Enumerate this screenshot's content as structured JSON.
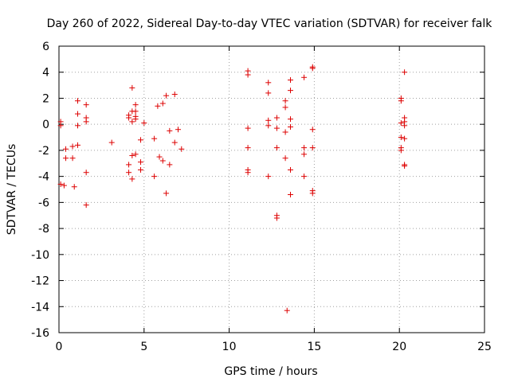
{
  "chart_data": {
    "type": "scatter",
    "title": "Day 260 of 2022, Sidereal Day-to-day VTEC variation (SDTVAR) for receiver falk",
    "xlabel": "GPS time / hours",
    "ylabel": "SDTVAR / TECUs",
    "xlim": [
      0,
      25
    ],
    "ylim": [
      -16,
      6
    ],
    "xticks": [
      0,
      5,
      10,
      15,
      20,
      25
    ],
    "yticks": [
      -16,
      -14,
      -12,
      -10,
      -8,
      -6,
      -4,
      -2,
      0,
      2,
      4,
      6
    ],
    "xtick_labels": [
      "0",
      "5",
      "10",
      "15",
      "20",
      "25"
    ],
    "ytick_labels": [
      "-16",
      "-14",
      "-12",
      "-10",
      "-8",
      "-6",
      "-4",
      "-2",
      "0",
      "2",
      "4",
      "6"
    ],
    "grid": true,
    "marker": "+",
    "marker_color": "#dd0000",
    "series": [
      {
        "name": "SDTVAR",
        "points": [
          [
            0.1,
            0.2
          ],
          [
            0.1,
            -0.1
          ],
          [
            0.1,
            -4.6
          ],
          [
            0.3,
            -4.7
          ],
          [
            0.4,
            -1.9
          ],
          [
            0.4,
            -2.6
          ],
          [
            0.8,
            -1.7
          ],
          [
            0.8,
            -2.6
          ],
          [
            0.9,
            -4.8
          ],
          [
            1.1,
            1.8
          ],
          [
            1.1,
            0.8
          ],
          [
            1.1,
            -0.1
          ],
          [
            1.1,
            -1.6
          ],
          [
            1.6,
            1.5
          ],
          [
            1.6,
            0.5
          ],
          [
            1.6,
            0.2
          ],
          [
            1.6,
            -3.7
          ],
          [
            1.6,
            -6.2
          ],
          [
            3.1,
            -1.4
          ],
          [
            4.1,
            0.7
          ],
          [
            4.1,
            0.5
          ],
          [
            4.1,
            -3.1
          ],
          [
            4.1,
            -3.7
          ],
          [
            4.3,
            2.8
          ],
          [
            4.3,
            1.0
          ],
          [
            4.3,
            0.2
          ],
          [
            4.3,
            -2.4
          ],
          [
            4.3,
            -4.2
          ],
          [
            4.5,
            1.5
          ],
          [
            4.5,
            1.0
          ],
          [
            4.5,
            0.6
          ],
          [
            4.5,
            0.4
          ],
          [
            4.5,
            -2.3
          ],
          [
            4.8,
            -1.2
          ],
          [
            4.8,
            -2.9
          ],
          [
            4.8,
            -3.5
          ],
          [
            5.0,
            0.1
          ],
          [
            5.6,
            -1.1
          ],
          [
            5.6,
            -4.0
          ],
          [
            5.8,
            1.4
          ],
          [
            5.9,
            -2.5
          ],
          [
            6.1,
            1.6
          ],
          [
            6.1,
            -2.8
          ],
          [
            6.3,
            2.2
          ],
          [
            6.3,
            -5.3
          ],
          [
            6.5,
            -0.5
          ],
          [
            6.5,
            -3.1
          ],
          [
            6.8,
            2.3
          ],
          [
            6.8,
            -1.4
          ],
          [
            7.0,
            -0.4
          ],
          [
            7.2,
            -1.9
          ],
          [
            11.1,
            4.1
          ],
          [
            11.1,
            3.8
          ],
          [
            11.1,
            -0.3
          ],
          [
            11.1,
            -1.8
          ],
          [
            11.1,
            -3.5
          ],
          [
            11.1,
            -3.7
          ],
          [
            12.3,
            3.2
          ],
          [
            12.3,
            2.4
          ],
          [
            12.3,
            0.3
          ],
          [
            12.3,
            -0.1
          ],
          [
            12.3,
            -4.0
          ],
          [
            12.8,
            0.5
          ],
          [
            12.8,
            -0.3
          ],
          [
            12.8,
            -1.8
          ],
          [
            12.8,
            -7.0
          ],
          [
            12.8,
            -7.2
          ],
          [
            13.3,
            1.8
          ],
          [
            13.3,
            1.3
          ],
          [
            13.3,
            -0.6
          ],
          [
            13.3,
            -2.6
          ],
          [
            13.4,
            -14.3
          ],
          [
            13.6,
            3.4
          ],
          [
            13.6,
            2.6
          ],
          [
            13.6,
            0.4
          ],
          [
            13.6,
            -0.2
          ],
          [
            13.6,
            -3.5
          ],
          [
            13.6,
            -5.4
          ],
          [
            14.4,
            3.6
          ],
          [
            14.4,
            -1.8
          ],
          [
            14.4,
            -2.3
          ],
          [
            14.4,
            -4.0
          ],
          [
            14.9,
            4.4
          ],
          [
            14.9,
            4.3
          ],
          [
            14.9,
            -0.4
          ],
          [
            14.9,
            -1.8
          ],
          [
            14.9,
            -5.1
          ],
          [
            14.9,
            -5.3
          ],
          [
            20.1,
            2.0
          ],
          [
            20.1,
            1.8
          ],
          [
            20.1,
            0.1
          ],
          [
            20.1,
            -1.0
          ],
          [
            20.1,
            -1.8
          ],
          [
            20.1,
            -2.0
          ],
          [
            20.3,
            4.0
          ],
          [
            20.3,
            0.5
          ],
          [
            20.3,
            0.2
          ],
          [
            20.3,
            -0.1
          ],
          [
            20.3,
            -1.1
          ],
          [
            20.3,
            -3.1
          ],
          [
            20.3,
            -3.2
          ]
        ]
      }
    ]
  }
}
